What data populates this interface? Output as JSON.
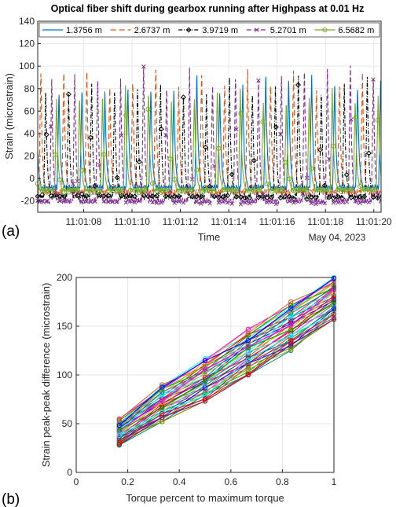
{
  "panel_labels": [
    "(a)",
    "(b)"
  ],
  "chart_data": [
    {
      "type": "line",
      "title": "Optical fiber shift during gearbox running after Highpass at 0.01 Hz",
      "xlabel": "Time",
      "ylabel": "Strain (microstrain)",
      "x_date_label": "May 04, 2023",
      "xlim": [
        6.1,
        20.3
      ],
      "ylim": [
        -30,
        140
      ],
      "x_ticks": [
        8,
        10,
        12,
        14,
        16,
        18,
        20
      ],
      "x_tick_labels": [
        "11:01:08",
        "11:01:10",
        "11:01:12",
        "11:01:14",
        "11:01:16",
        "11:01:18",
        "11:01:20"
      ],
      "y_ticks": [
        -20,
        0,
        20,
        40,
        60,
        80,
        100,
        120,
        140
      ],
      "legend_position": "top",
      "pulse_period_s": 0.95,
      "series": [
        {
          "name": "1.3756 m",
          "color": "#0072BD",
          "dash": "none",
          "marker": "none",
          "phase_s": 6.9,
          "peak": 95,
          "base": -8
        },
        {
          "name": "2.6737 m",
          "color": "#D95319",
          "dash": "7,4",
          "marker": "none",
          "phase_s": 7.1,
          "peak": 100,
          "base": -12
        },
        {
          "name": "3.9719 m",
          "color": "#000000",
          "dash": "5,2,1,2",
          "marker": "diamond",
          "phase_s": 7.3,
          "peak": 93,
          "base": -16
        },
        {
          "name": "5.2701 m",
          "color": "#7E2F8E",
          "dash": "6,3",
          "marker": "x",
          "phase_s": 7.55,
          "peak": 103,
          "base": -20
        },
        {
          "name": "6.5682 m",
          "color": "#77AC30",
          "dash": "none",
          "marker": "circle",
          "phase_s": 7.75,
          "peak": 84,
          "base": -10
        }
      ]
    },
    {
      "type": "line",
      "xlabel": "Torque percent to maximum torque",
      "ylabel": "Strain peak-peak difference (microstrain)",
      "xlim": [
        0,
        1
      ],
      "ylim": [
        0,
        200
      ],
      "x_ticks": [
        0,
        0.2,
        0.4,
        0.6,
        0.8,
        1
      ],
      "x_tick_labels": [
        "0",
        "0.2",
        "0.4",
        "0.6",
        "0.8",
        "1"
      ],
      "y_ticks": [
        0,
        50,
        100,
        150,
        200
      ],
      "x": [
        0.167,
        0.333,
        0.5,
        0.667,
        0.833,
        1.0
      ],
      "marker": "circle",
      "series_count": 40,
      "range_low": [
        28,
        52,
        73,
        100,
        125,
        157
      ],
      "range_high": [
        55,
        90,
        117,
        147,
        175,
        200
      ]
    }
  ]
}
